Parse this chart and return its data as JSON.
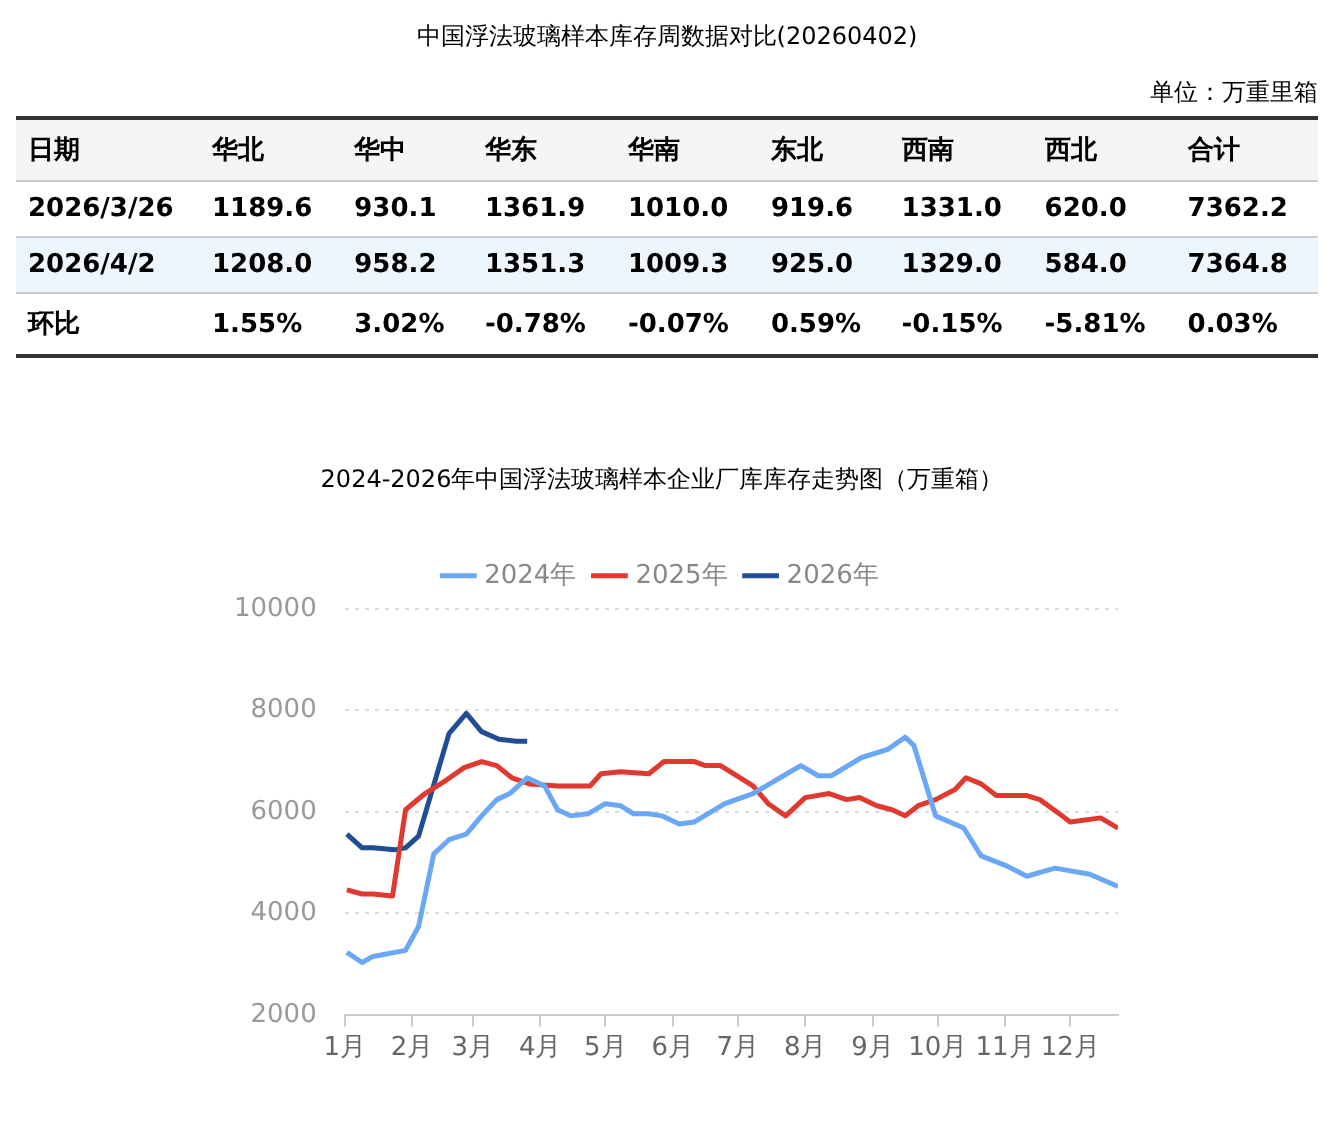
{
  "chart_data": [
    {
      "type": "other",
      "title": "中国浮法玻璃样本库存周数据对比(20260402)",
      "annotations": [
        "单位：万重里箱"
      ],
      "ylabel": "日期",
      "categories": [
        "华北",
        "华中",
        "华东",
        "华南",
        "东北",
        "西南",
        "西北",
        "合计"
      ],
      "y_categories": [
        "2026/3/26",
        "2026/4/2",
        "环比"
      ],
      "cell_labels": [
        [
          "1189.6",
          "930.1",
          "1361.9",
          "1010.0",
          "919.6",
          "1331.0",
          "620.0",
          "7362.2"
        ],
        [
          "1208.0",
          "958.2",
          "1351.3",
          "1009.3",
          "925.0",
          "1329.0",
          "584.0",
          "7364.8"
        ],
        [
          "1.55%",
          "3.02%",
          "-0.78%",
          "-0.07%",
          "0.59%",
          "-0.15%",
          "-5.81%",
          "0.03%"
        ]
      ]
    },
    {
      "type": "line",
      "title": "2024-2026年中国浮法玻璃样本企业厂库库存走势图（万重箱）",
      "legend": "top",
      "grid": "y",
      "marker": "none",
      "line_style": "solid",
      "xlim": [
        "--01-01",
        "--12-23"
      ],
      "xticks": [
        {
          "value": "--01-01",
          "label": "1月"
        },
        {
          "value": "--02-01",
          "label": "2月"
        },
        {
          "value": "--03-01",
          "label": "3月"
        },
        {
          "value": "--04-01",
          "label": "4月"
        },
        {
          "value": "--05-01",
          "label": "5月"
        },
        {
          "value": "--06-01",
          "label": "6月"
        },
        {
          "value": "--07-01",
          "label": "7月"
        },
        {
          "value": "--08-01",
          "label": "8月"
        },
        {
          "value": "--09-01",
          "label": "9月"
        },
        {
          "value": "--10-01",
          "label": "10月"
        },
        {
          "value": "--11-01",
          "label": "11月"
        },
        {
          "value": "--12-01",
          "label": "12月"
        }
      ],
      "ylim": [
        2000,
        10000
      ],
      "yticks": [
        2000,
        4000,
        6000,
        8000,
        10000
      ],
      "series": [
        {
          "name": "2024年",
          "color": "#6aa8f5",
          "x": [
            "--01-02",
            "--01-09",
            "--01-14",
            "--01-29",
            "--02-04",
            "--02-11",
            "--02-18",
            "--02-26",
            "--03-05",
            "--03-12",
            "--03-18",
            "--03-26",
            "--04-03",
            "--04-09",
            "--04-15",
            "--04-23",
            "--05-01",
            "--05-08",
            "--05-14",
            "--05-21",
            "--05-27",
            "--06-04",
            "--06-11",
            "--06-25",
            "--07-08",
            "--07-22",
            "--07-30",
            "--08-07",
            "--08-13",
            "--08-27",
            "--09-08",
            "--09-16",
            "--09-20",
            "--09-30",
            "--10-13",
            "--10-21",
            "--11-02",
            "--11-11",
            "--11-24",
            "--12-10",
            "--12-23"
          ],
          "values": [
            3230,
            3030,
            3150,
            3270,
            3740,
            5170,
            5450,
            5560,
            5920,
            6240,
            6360,
            6670,
            6510,
            6040,
            5920,
            5960,
            6160,
            6120,
            5960,
            5960,
            5920,
            5760,
            5800,
            6160,
            6360,
            6710,
            6910,
            6710,
            6710,
            7070,
            7230,
            7470,
            7310,
            5920,
            5680,
            5130,
            4930,
            4730,
            4890,
            4770,
            4530
          ]
        },
        {
          "name": "2025年",
          "color": "#e03a30",
          "x": [
            "--01-02",
            "--01-09",
            "--01-14",
            "--01-23",
            "--01-29",
            "--02-07",
            "--02-17",
            "--02-25",
            "--03-05",
            "--03-12",
            "--03-19",
            "--03-27",
            "--04-09",
            "--04-15",
            "--04-24",
            "--04-29",
            "--05-08",
            "--05-21",
            "--05-28",
            "--06-11",
            "--06-16",
            "--06-23",
            "--07-08",
            "--07-15",
            "--07-23",
            "--08-01",
            "--08-12",
            "--08-20",
            "--08-26",
            "--09-03",
            "--09-10",
            "--09-16",
            "--09-22",
            "--09-30",
            "--10-09",
            "--10-14",
            "--10-21",
            "--10-28",
            "--11-11",
            "--11-17",
            "--11-26",
            "--12-01",
            "--12-15",
            "--12-23"
          ],
          "values": [
            4460,
            4380,
            4380,
            4340,
            6040,
            6360,
            6630,
            6870,
            6990,
            6910,
            6670,
            6550,
            6510,
            6510,
            6510,
            6750,
            6790,
            6750,
            6990,
            6990,
            6910,
            6910,
            6510,
            6160,
            5920,
            6280,
            6360,
            6240,
            6280,
            6120,
            6040,
            5920,
            6120,
            6240,
            6440,
            6670,
            6550,
            6320,
            6320,
            6240,
            5960,
            5800,
            5880,
            5680
          ]
        },
        {
          "name": "2026年",
          "color": "#1f4e96",
          "x": [
            "--01-02",
            "--01-09",
            "--01-14",
            "--01-24",
            "--01-29",
            "--02-04",
            "--02-18",
            "--02-26",
            "--03-05",
            "--03-13",
            "--03-21",
            "--03-26"
          ],
          "values": [
            5560,
            5290,
            5290,
            5250,
            5290,
            5520,
            7540,
            7940,
            7580,
            7430,
            7390,
            7390
          ]
        }
      ]
    }
  ]
}
